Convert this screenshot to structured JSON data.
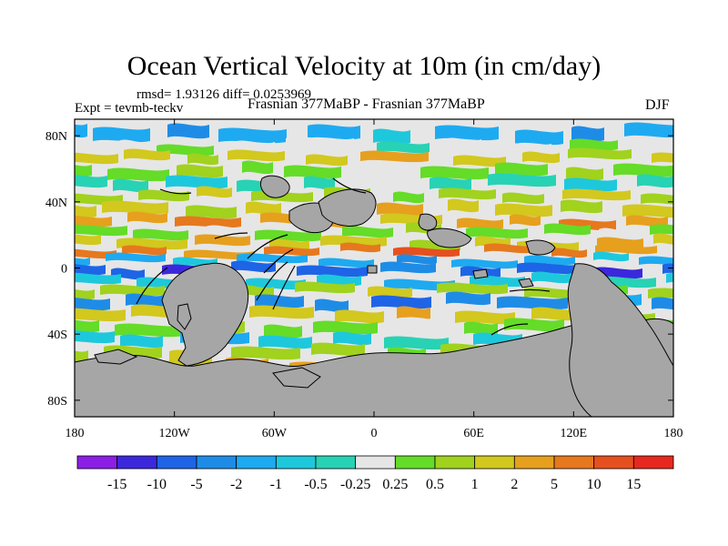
{
  "chart_data": {
    "type": "heatmap",
    "title": "Ocean Vertical Velocity at 10m (in cm/day)",
    "stats_label": "rmsd= 1.93126  diff= 0.0253969",
    "left_label": "Expt = tevmb-teckv",
    "center_label": "Frasnian 377MaBP - Frasnian 377MaBP",
    "right_label": "DJF",
    "units": "cm/day",
    "x_range": [
      -180,
      180
    ],
    "y_range": [
      -90,
      90
    ],
    "x_ticks": [
      {
        "value": -180,
        "label": "180"
      },
      {
        "value": -120,
        "label": "120W"
      },
      {
        "value": -60,
        "label": "60W"
      },
      {
        "value": 0,
        "label": "0"
      },
      {
        "value": 60,
        "label": "60E"
      },
      {
        "value": 120,
        "label": "120E"
      },
      {
        "value": 180,
        "label": "180"
      }
    ],
    "y_ticks": [
      {
        "value": 80,
        "label": "80N"
      },
      {
        "value": 40,
        "label": "40N"
      },
      {
        "value": 0,
        "label": "0"
      },
      {
        "value": -40,
        "label": "40S"
      },
      {
        "value": -80,
        "label": "80S"
      }
    ],
    "colorbar": {
      "levels": [
        "-15",
        "-10",
        "-5",
        "-2",
        "-1",
        "-0.5",
        "-0.25",
        "0.25",
        "0.5",
        "1",
        "2",
        "5",
        "10",
        "15"
      ],
      "colors": [
        "#8c1ee6",
        "#3c28dc",
        "#1e64e6",
        "#1e8ce6",
        "#1eaaf0",
        "#1ec8dc",
        "#28d2b4",
        "#e6e6e6",
        "#64dc28",
        "#a0d21e",
        "#d2c81e",
        "#e6a01e",
        "#e6781e",
        "#e6501e",
        "#e6281e"
      ]
    },
    "land_color": "#a6a6a6"
  }
}
